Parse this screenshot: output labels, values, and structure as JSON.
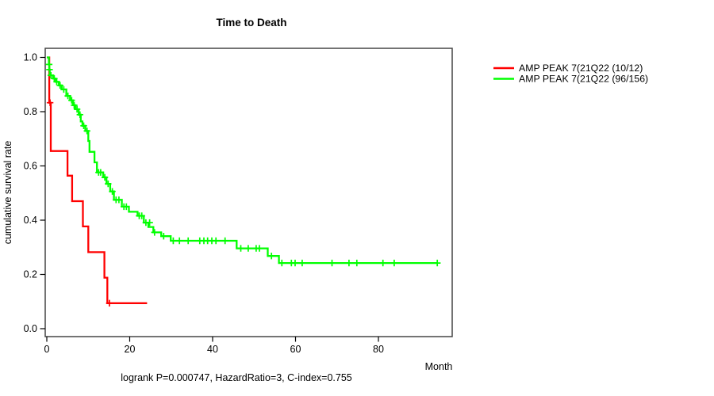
{
  "chart_data": {
    "type": "line",
    "subtype": "kaplan-meier-step-curve",
    "title": "Time to Death",
    "xlabel": "Month",
    "ylabel": "cumulative survival rate",
    "footer": "logrank P=0.000747, HazardRatio=3, C-index=0.755",
    "xlim": [
      0,
      97.5
    ],
    "ylim": [
      0,
      1.0
    ],
    "x_ticks": [
      0,
      20,
      40,
      60,
      80
    ],
    "y_ticks": [
      "0.0",
      "0.2",
      "0.4",
      "0.6",
      "0.8",
      "1.0"
    ],
    "grid": false,
    "legend_position": "outside-right-top",
    "series": [
      {
        "name": "AMP PEAK 7(21Q22 (10/12)",
        "color": "#ff0000",
        "steps": [
          [
            0,
            1.0
          ],
          [
            0.6,
            1.0
          ],
          [
            0.6,
            0.833
          ],
          [
            0.95,
            0.833
          ],
          [
            0.95,
            0.655
          ],
          [
            5.0,
            0.655
          ],
          [
            5.0,
            0.564
          ],
          [
            6.1,
            0.564
          ],
          [
            6.1,
            0.47
          ],
          [
            8.7,
            0.47
          ],
          [
            8.7,
            0.377
          ],
          [
            10.0,
            0.377
          ],
          [
            10.0,
            0.282
          ],
          [
            13.9,
            0.282
          ],
          [
            13.9,
            0.188
          ],
          [
            14.6,
            0.188
          ],
          [
            14.6,
            0.094
          ],
          [
            24.2,
            0.094
          ]
        ],
        "censors": [
          [
            0.78,
            0.833
          ],
          [
            15.1,
            0.094
          ]
        ]
      },
      {
        "name": "AMP PEAK 7(21Q22 (96/156)",
        "color": "#00ff00",
        "steps": [
          [
            0,
            1.0
          ],
          [
            0.5,
            1.0
          ],
          [
            0.5,
            0.974
          ],
          [
            0.6,
            0.974
          ],
          [
            0.6,
            0.955
          ],
          [
            0.7,
            0.955
          ],
          [
            0.7,
            0.934
          ],
          [
            1.5,
            0.934
          ],
          [
            1.5,
            0.922
          ],
          [
            2.1,
            0.922
          ],
          [
            2.1,
            0.91
          ],
          [
            2.9,
            0.91
          ],
          [
            2.9,
            0.897
          ],
          [
            3.6,
            0.897
          ],
          [
            3.6,
            0.882
          ],
          [
            4.7,
            0.882
          ],
          [
            4.7,
            0.858
          ],
          [
            5.6,
            0.858
          ],
          [
            5.6,
            0.842
          ],
          [
            6.3,
            0.842
          ],
          [
            6.3,
            0.824
          ],
          [
            6.9,
            0.824
          ],
          [
            6.9,
            0.809
          ],
          [
            7.7,
            0.809
          ],
          [
            7.7,
            0.789
          ],
          [
            8.2,
            0.789
          ],
          [
            8.2,
            0.764
          ],
          [
            8.6,
            0.764
          ],
          [
            8.6,
            0.748
          ],
          [
            9.3,
            0.748
          ],
          [
            9.3,
            0.729
          ],
          [
            10.0,
            0.729
          ],
          [
            10.0,
            0.692
          ],
          [
            10.3,
            0.692
          ],
          [
            10.3,
            0.652
          ],
          [
            11.5,
            0.652
          ],
          [
            11.5,
            0.613
          ],
          [
            12.1,
            0.613
          ],
          [
            12.1,
            0.576
          ],
          [
            13.6,
            0.576
          ],
          [
            13.6,
            0.558
          ],
          [
            14.4,
            0.558
          ],
          [
            14.4,
            0.534
          ],
          [
            15.3,
            0.534
          ],
          [
            15.3,
            0.506
          ],
          [
            16.2,
            0.506
          ],
          [
            16.2,
            0.475
          ],
          [
            18.1,
            0.475
          ],
          [
            18.1,
            0.45
          ],
          [
            19.8,
            0.45
          ],
          [
            19.8,
            0.431
          ],
          [
            21.9,
            0.431
          ],
          [
            21.9,
            0.416
          ],
          [
            23.4,
            0.416
          ],
          [
            23.4,
            0.391
          ],
          [
            24.5,
            0.391
          ],
          [
            24.5,
            0.375
          ],
          [
            25.7,
            0.375
          ],
          [
            25.7,
            0.355
          ],
          [
            27.6,
            0.355
          ],
          [
            27.6,
            0.341
          ],
          [
            29.9,
            0.341
          ],
          [
            29.9,
            0.324
          ],
          [
            45.8,
            0.324
          ],
          [
            45.8,
            0.296
          ],
          [
            53.3,
            0.296
          ],
          [
            53.3,
            0.268
          ],
          [
            56.0,
            0.268
          ],
          [
            56.0,
            0.242
          ],
          [
            94.2,
            0.242
          ]
        ],
        "censors": [
          [
            0.55,
            0.974
          ],
          [
            0.65,
            0.955
          ],
          [
            1.0,
            0.934
          ],
          [
            1.8,
            0.922
          ],
          [
            2.4,
            0.91
          ],
          [
            3.2,
            0.897
          ],
          [
            4.1,
            0.882
          ],
          [
            5.1,
            0.858
          ],
          [
            6.0,
            0.842
          ],
          [
            6.6,
            0.824
          ],
          [
            7.3,
            0.809
          ],
          [
            8.0,
            0.789
          ],
          [
            8.9,
            0.748
          ],
          [
            9.7,
            0.729
          ],
          [
            12.5,
            0.576
          ],
          [
            13.0,
            0.576
          ],
          [
            14.0,
            0.558
          ],
          [
            14.8,
            0.534
          ],
          [
            15.8,
            0.506
          ],
          [
            16.7,
            0.475
          ],
          [
            17.4,
            0.475
          ],
          [
            18.6,
            0.45
          ],
          [
            19.2,
            0.45
          ],
          [
            22.3,
            0.416
          ],
          [
            22.9,
            0.416
          ],
          [
            23.9,
            0.391
          ],
          [
            24.8,
            0.391
          ],
          [
            26.0,
            0.355
          ],
          [
            28.2,
            0.341
          ],
          [
            30.5,
            0.324
          ],
          [
            32.0,
            0.324
          ],
          [
            34.1,
            0.324
          ],
          [
            36.9,
            0.324
          ],
          [
            37.9,
            0.324
          ],
          [
            38.8,
            0.324
          ],
          [
            39.8,
            0.324
          ],
          [
            40.8,
            0.324
          ],
          [
            43.0,
            0.324
          ],
          [
            46.8,
            0.296
          ],
          [
            48.6,
            0.296
          ],
          [
            50.5,
            0.296
          ],
          [
            51.3,
            0.296
          ],
          [
            54.2,
            0.268
          ],
          [
            56.7,
            0.242
          ],
          [
            59.0,
            0.242
          ],
          [
            59.9,
            0.242
          ],
          [
            61.6,
            0.242
          ],
          [
            68.8,
            0.242
          ],
          [
            72.9,
            0.242
          ],
          [
            74.8,
            0.242
          ],
          [
            81.1,
            0.242
          ],
          [
            83.8,
            0.242
          ],
          [
            94.2,
            0.242
          ]
        ]
      }
    ]
  },
  "colors": {
    "background": "#ffffff",
    "box": "#454545",
    "tick": "#000000",
    "text": "#000000",
    "series_red": "#ff0000",
    "series_green": "#00ff00"
  }
}
